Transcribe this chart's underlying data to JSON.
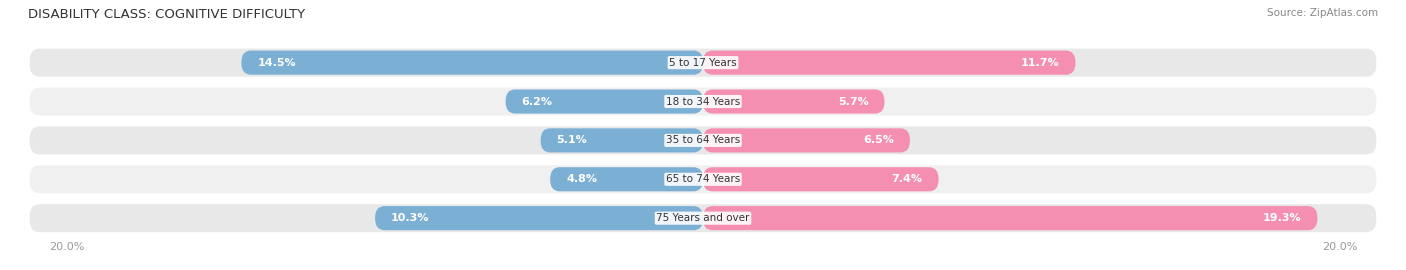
{
  "title": "DISABILITY CLASS: COGNITIVE DIFFICULTY",
  "source": "Source: ZipAtlas.com",
  "categories": [
    "5 to 17 Years",
    "18 to 34 Years",
    "35 to 64 Years",
    "65 to 74 Years",
    "75 Years and over"
  ],
  "male_values": [
    14.5,
    6.2,
    5.1,
    4.8,
    10.3
  ],
  "female_values": [
    11.7,
    5.7,
    6.5,
    7.4,
    19.3
  ],
  "max_val": 20.0,
  "male_color": "#7bafd4",
  "female_color": "#f48fb1",
  "row_bg_even": "#e8e8e8",
  "row_bg_odd": "#f0f0f0",
  "title_color": "#333333",
  "source_color": "#888888",
  "label_inside_color": "#ffffff",
  "label_outside_color": "#555555",
  "category_color": "#333333",
  "axis_color": "#999999",
  "title_fontsize": 9.5,
  "source_fontsize": 7.5,
  "label_fontsize": 8.0,
  "category_fontsize": 7.5,
  "axis_tick_fontsize": 8.0,
  "legend_fontsize": 8.0
}
